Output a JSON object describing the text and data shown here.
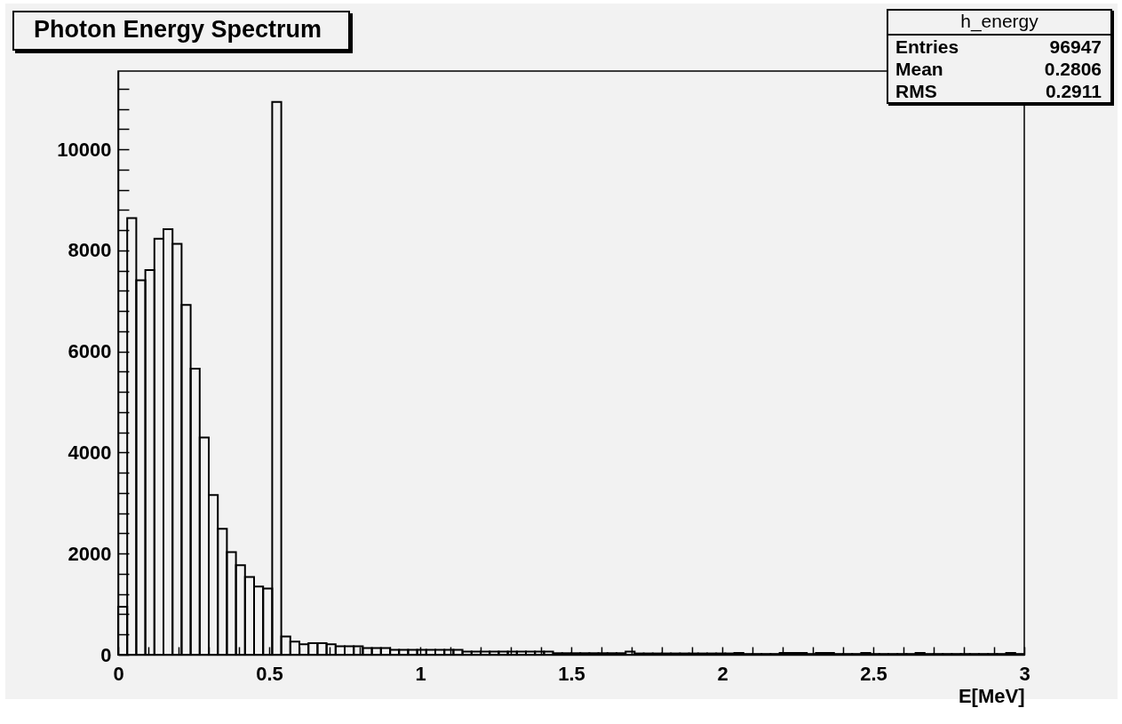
{
  "chart_data": {
    "type": "histogram",
    "title": "Photon Energy Spectrum",
    "xlabel": "E[MeV]",
    "annotations": [
      "h_energy",
      "Entries",
      "96947",
      "Mean",
      "0.2806",
      "RMS",
      "0.2911"
    ],
    "color": "#000000",
    "grid": false,
    "bins": [
      0,
      0.03,
      0.06,
      0.09,
      0.12,
      0.15,
      0.18,
      0.21,
      0.24,
      0.27,
      0.3,
      0.33,
      0.36,
      0.39,
      0.42,
      0.45,
      0.48,
      0.51,
      0.54,
      0.57,
      0.6,
      0.63,
      0.66,
      0.69,
      0.72,
      0.75,
      0.78,
      0.81,
      0.84,
      0.87,
      0.9,
      0.93,
      0.96,
      0.99,
      1.02,
      1.05,
      1.08,
      1.11,
      1.14,
      1.17,
      1.2,
      1.23,
      1.26,
      1.29,
      1.32,
      1.35,
      1.38,
      1.41,
      1.44,
      1.47,
      1.5,
      1.53,
      1.56,
      1.59,
      1.62,
      1.65,
      1.68,
      1.71,
      1.74,
      1.77,
      1.8,
      1.83,
      1.86,
      1.89,
      1.92,
      1.95,
      1.98,
      2.01,
      2.04,
      2.07,
      2.1,
      2.13,
      2.16,
      2.19,
      2.22,
      2.25,
      2.28,
      2.31,
      2.34,
      2.37,
      2.4,
      2.43,
      2.46,
      2.49,
      2.52,
      2.55,
      2.58,
      2.61,
      2.64,
      2.67,
      2.7,
      2.73,
      2.76,
      2.79,
      2.82,
      2.85,
      2.88,
      2.91,
      2.94,
      2.97,
      3
    ],
    "values": [
      950,
      8640,
      7410,
      7610,
      8230,
      8420,
      8130,
      6920,
      5660,
      4300,
      3160,
      2490,
      2030,
      1770,
      1540,
      1350,
      1310,
      10940,
      360,
      260,
      205,
      230,
      230,
      205,
      165,
      165,
      165,
      130,
      130,
      130,
      95,
      95,
      95,
      95,
      95,
      95,
      95,
      95,
      60,
      60,
      60,
      60,
      60,
      60,
      60,
      60,
      60,
      60,
      30,
      30,
      30,
      30,
      30,
      30,
      30,
      30,
      60,
      25,
      25,
      25,
      25,
      25,
      25,
      25,
      25,
      25,
      25,
      25,
      35,
      15,
      15,
      15,
      15,
      35,
      35,
      35,
      15,
      35,
      35,
      15,
      15,
      15,
      35,
      15,
      15,
      15,
      15,
      15,
      35,
      15,
      15,
      15,
      15,
      15,
      15,
      15,
      15,
      15,
      35,
      15
    ],
    "xlim": [
      0,
      3
    ],
    "xticks": [
      0,
      {
        "value": 0.1,
        "label": null
      },
      {
        "value": 0.2,
        "label": null
      },
      {
        "value": 0.3,
        "label": null
      },
      {
        "value": 0.4,
        "label": null
      },
      0.5,
      {
        "value": 0.6,
        "label": null
      },
      {
        "value": 0.7,
        "label": null
      },
      {
        "value": 0.8,
        "label": null
      },
      {
        "value": 0.9,
        "label": null
      },
      1,
      {
        "value": 1.1,
        "label": null
      },
      {
        "value": 1.2,
        "label": null
      },
      {
        "value": 1.3,
        "label": null
      },
      {
        "value": 1.4,
        "label": null
      },
      1.5,
      {
        "value": 1.6,
        "label": null
      },
      {
        "value": 1.7,
        "label": null
      },
      {
        "value": 1.8,
        "label": null
      },
      {
        "value": 1.9,
        "label": null
      },
      2,
      {
        "value": 2.1,
        "label": null
      },
      {
        "value": 2.2,
        "label": null
      },
      {
        "value": 2.3,
        "label": null
      },
      {
        "value": 2.4,
        "label": null
      },
      2.5,
      {
        "value": 2.6,
        "label": null
      },
      {
        "value": 2.7,
        "label": null
      },
      {
        "value": 2.8,
        "label": null
      },
      {
        "value": 2.9,
        "label": null
      },
      3
    ],
    "ylim": [
      0,
      11550
    ],
    "yticks": [
      0,
      {
        "value": 400,
        "label": null
      },
      {
        "value": 800,
        "label": null
      },
      {
        "value": 1200,
        "label": null
      },
      {
        "value": 1600,
        "label": null
      },
      2000,
      {
        "value": 2400,
        "label": null
      },
      {
        "value": 2800,
        "label": null
      },
      {
        "value": 3200,
        "label": null
      },
      {
        "value": 3600,
        "label": null
      },
      4000,
      {
        "value": 4400,
        "label": null
      },
      {
        "value": 4800,
        "label": null
      },
      {
        "value": 5200,
        "label": null
      },
      {
        "value": 5600,
        "label": null
      },
      6000,
      {
        "value": 6400,
        "label": null
      },
      {
        "value": 6800,
        "label": null
      },
      {
        "value": 7200,
        "label": null
      },
      {
        "value": 7600,
        "label": null
      },
      8000,
      {
        "value": 8400,
        "label": null
      },
      {
        "value": 8800,
        "label": null
      },
      {
        "value": 9200,
        "label": null
      },
      {
        "value": 9600,
        "label": null
      },
      10000,
      {
        "value": 10400,
        "label": null
      },
      {
        "value": 10800,
        "label": null
      },
      {
        "value": 11200,
        "label": null
      }
    ]
  }
}
